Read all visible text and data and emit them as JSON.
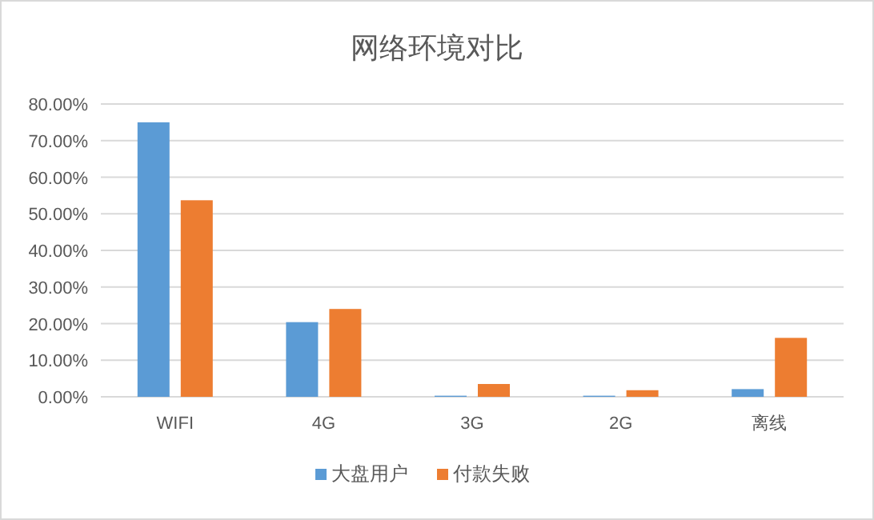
{
  "chart_data": {
    "type": "bar",
    "title": "网络环境对比",
    "categories": [
      "WIFI",
      "4G",
      "3G",
      "2G",
      "离线"
    ],
    "series": [
      {
        "name": "大盘用户",
        "color": "#5b9bd5",
        "values": [
          75.0,
          20.4,
          0.3,
          0.3,
          2.1
        ]
      },
      {
        "name": "付款失败",
        "color": "#ed7d31",
        "values": [
          53.7,
          24.0,
          3.5,
          1.8,
          16.1
        ]
      }
    ],
    "ylim": [
      0,
      80
    ],
    "yticks": [
      {
        "value": 0,
        "label": "0.00%"
      },
      {
        "value": 10,
        "label": "10.00%"
      },
      {
        "value": 20,
        "label": "20.00%"
      },
      {
        "value": 30,
        "label": "30.00%"
      },
      {
        "value": 40,
        "label": "40.00%"
      },
      {
        "value": 50,
        "label": "50.00%"
      },
      {
        "value": 60,
        "label": "60.00%"
      },
      {
        "value": 70,
        "label": "70.00%"
      },
      {
        "value": 80,
        "label": "80.00%"
      }
    ],
    "grid": "y",
    "legend": "bottom"
  }
}
